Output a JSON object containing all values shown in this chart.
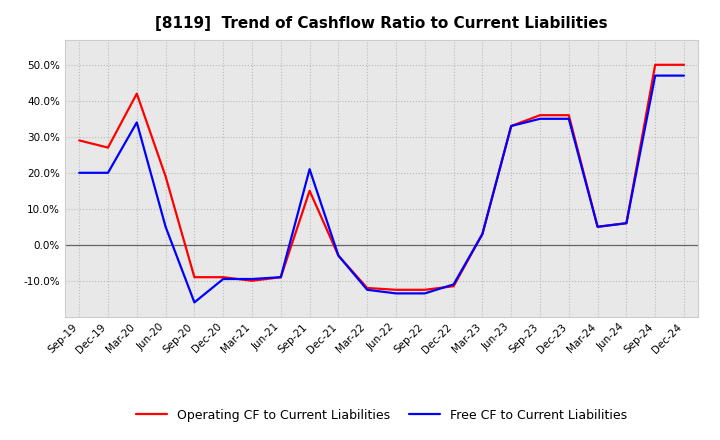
{
  "title": "[8119]  Trend of Cashflow Ratio to Current Liabilities",
  "x_labels": [
    "Sep-19",
    "Dec-19",
    "Mar-20",
    "Jun-20",
    "Sep-20",
    "Dec-20",
    "Mar-21",
    "Jun-21",
    "Sep-21",
    "Dec-21",
    "Mar-22",
    "Jun-22",
    "Sep-22",
    "Dec-22",
    "Mar-23",
    "Jun-23",
    "Sep-23",
    "Dec-23",
    "Mar-24",
    "Jun-24",
    "Sep-24",
    "Dec-24"
  ],
  "operating_cf": [
    29.0,
    27.0,
    42.0,
    19.0,
    -9.0,
    -9.0,
    -10.0,
    -9.0,
    15.0,
    -3.0,
    -12.0,
    -12.5,
    -12.5,
    -11.5,
    3.0,
    33.0,
    36.0,
    36.0,
    5.0,
    6.0,
    50.0,
    50.0
  ],
  "free_cf": [
    20.0,
    20.0,
    34.0,
    5.0,
    -16.0,
    -9.5,
    -9.5,
    -9.0,
    21.0,
    -3.0,
    -12.5,
    -13.5,
    -13.5,
    -11.0,
    3.0,
    33.0,
    35.0,
    35.0,
    5.0,
    6.0,
    47.0,
    47.0
  ],
  "operating_color": "#FF0000",
  "free_color": "#0000FF",
  "background_color": "#FFFFFF",
  "plot_bg_color": "#E8E8E8",
  "grid_color": "#BBBBBB",
  "yticks": [
    -10,
    0,
    10,
    20,
    30,
    40,
    50
  ],
  "ylim": [
    -20,
    57
  ],
  "title_fontsize": 11,
  "tick_fontsize": 7.5,
  "legend_fontsize": 9
}
